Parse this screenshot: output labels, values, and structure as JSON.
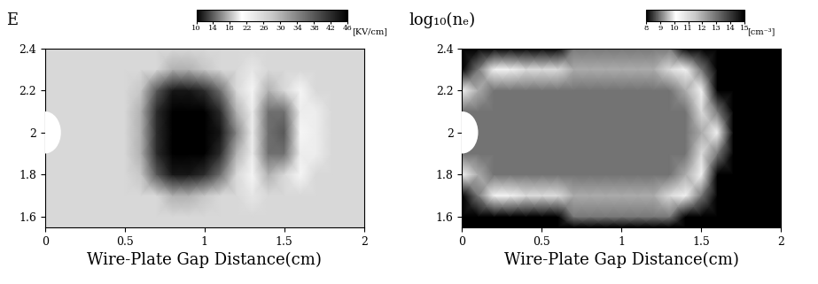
{
  "chart_data": [
    {
      "type": "heatmap",
      "title": "E",
      "xlabel": "Wire-Plate Gap Distance(cm)",
      "xlim": [
        0,
        2
      ],
      "xticks": [
        0,
        0.5,
        1,
        1.5,
        2
      ],
      "ylim": [
        1.55,
        2.4
      ],
      "yticks": [
        1.6,
        1.8,
        2,
        2.2,
        2.4
      ],
      "x": [
        0,
        0.1,
        0.2,
        0.3,
        0.4,
        0.5,
        0.6,
        0.7,
        0.8,
        0.9,
        1.0,
        1.1,
        1.2,
        1.3,
        1.4,
        1.5,
        1.6,
        1.7,
        1.8,
        1.9,
        2.0
      ],
      "y": [
        1.55,
        1.6,
        1.7,
        1.8,
        1.9,
        2.0,
        2.1,
        2.2,
        2.3,
        2.4
      ],
      "cells": [
        [
          26,
          26,
          26,
          26,
          26,
          26,
          26,
          26,
          26,
          26,
          26,
          26,
          26,
          26,
          26,
          26,
          26,
          26,
          26,
          26,
          26
        ],
        [
          26,
          26,
          26,
          26,
          26,
          26,
          26,
          26,
          26,
          26,
          26,
          26,
          26,
          26,
          26,
          26,
          26,
          26,
          26,
          26,
          26
        ],
        [
          26,
          26,
          26,
          26,
          26,
          26,
          26,
          26,
          30,
          30,
          28,
          26,
          26,
          24,
          26,
          26,
          26,
          26,
          26,
          26,
          26
        ],
        [
          26,
          26,
          26,
          26,
          26,
          26,
          28,
          38,
          44,
          44,
          42,
          36,
          26,
          22,
          30,
          26,
          22,
          26,
          26,
          26,
          26
        ],
        [
          26,
          26,
          26,
          26,
          26,
          26,
          30,
          42,
          46,
          46,
          46,
          42,
          30,
          20,
          36,
          36,
          20,
          20,
          26,
          26,
          26
        ],
        [
          26,
          26,
          26,
          26,
          26,
          26,
          30,
          42,
          46,
          46,
          46,
          44,
          34,
          20,
          36,
          38,
          22,
          20,
          26,
          26,
          26
        ],
        [
          26,
          26,
          26,
          26,
          26,
          26,
          30,
          42,
          46,
          46,
          46,
          42,
          30,
          20,
          36,
          36,
          20,
          20,
          26,
          26,
          26
        ],
        [
          26,
          26,
          26,
          26,
          26,
          26,
          28,
          38,
          44,
          44,
          42,
          36,
          26,
          22,
          30,
          26,
          22,
          26,
          26,
          26,
          26
        ],
        [
          26,
          26,
          26,
          26,
          26,
          26,
          26,
          26,
          30,
          30,
          28,
          26,
          26,
          24,
          26,
          26,
          26,
          26,
          26,
          26,
          26
        ],
        [
          26,
          26,
          26,
          26,
          26,
          26,
          26,
          26,
          26,
          26,
          26,
          26,
          26,
          26,
          26,
          26,
          26,
          26,
          26,
          26,
          26
        ]
      ],
      "colorbar": {
        "range": [
          10,
          46
        ],
        "ticks": [
          10,
          14,
          18,
          22,
          26,
          30,
          34,
          38,
          42,
          46
        ],
        "label": "[KV/cm]"
      }
    },
    {
      "type": "heatmap",
      "title": "log₁₀(nₑ)",
      "xlabel": "Wire-Plate Gap Distance(cm)",
      "xlim": [
        0,
        2
      ],
      "xticks": [
        0,
        0.5,
        1,
        1.5,
        2
      ],
      "ylim": [
        1.55,
        2.4
      ],
      "yticks": [
        1.6,
        1.8,
        2,
        2.2,
        2.4
      ],
      "x": [
        0,
        0.1,
        0.2,
        0.3,
        0.4,
        0.5,
        0.6,
        0.7,
        0.8,
        0.9,
        1.0,
        1.1,
        1.2,
        1.3,
        1.4,
        1.5,
        1.6,
        1.7,
        1.8,
        1.9,
        2.0
      ],
      "y": [
        1.55,
        1.6,
        1.7,
        1.8,
        1.9,
        2.0,
        2.1,
        2.2,
        2.3,
        2.4
      ],
      "cells": [
        [
          8,
          8,
          8,
          8,
          8,
          8,
          8,
          8,
          8,
          8,
          8,
          8,
          8,
          8,
          8,
          8,
          8,
          8,
          8,
          8,
          8
        ],
        [
          8,
          8,
          8,
          8,
          8,
          8,
          8,
          9,
          9,
          9,
          9,
          9,
          9,
          9,
          8,
          8,
          8,
          8,
          8,
          8,
          8
        ],
        [
          8,
          9,
          10,
          10,
          11,
          11,
          11,
          12,
          12,
          12,
          12,
          12,
          12,
          11,
          10,
          9,
          8,
          8,
          8,
          8,
          8
        ],
        [
          10,
          12,
          13,
          13,
          13,
          13,
          13,
          13,
          13,
          13,
          13,
          13,
          13,
          13,
          12,
          10,
          8,
          8,
          8,
          8,
          8
        ],
        [
          13,
          13,
          13,
          13,
          13,
          13,
          13,
          13,
          13,
          13,
          13,
          13,
          13,
          13,
          13,
          11,
          9,
          8,
          8,
          8,
          8
        ],
        [
          13,
          13,
          13,
          13,
          13,
          13,
          13,
          13,
          13,
          13,
          13,
          13,
          13,
          13,
          13,
          12,
          10,
          8,
          8,
          8,
          8
        ],
        [
          13,
          13,
          13,
          13,
          13,
          13,
          13,
          13,
          13,
          13,
          13,
          13,
          13,
          13,
          13,
          11,
          9,
          8,
          8,
          8,
          8
        ],
        [
          10,
          12,
          13,
          13,
          13,
          13,
          13,
          13,
          13,
          13,
          13,
          13,
          13,
          13,
          12,
          10,
          8,
          8,
          8,
          8,
          8
        ],
        [
          8,
          9,
          10,
          10,
          11,
          11,
          11,
          12,
          12,
          12,
          12,
          12,
          12,
          11,
          10,
          9,
          8,
          8,
          8,
          8,
          8
        ],
        [
          8,
          8,
          8,
          8,
          8,
          8,
          8,
          9,
          9,
          9,
          9,
          9,
          9,
          9,
          8,
          8,
          8,
          8,
          8,
          8,
          8
        ]
      ],
      "colorbar": {
        "range": [
          8,
          15
        ],
        "ticks": [
          8,
          9,
          10,
          11,
          12,
          13,
          14,
          15
        ],
        "label": "[cm⁻³]"
      }
    }
  ]
}
